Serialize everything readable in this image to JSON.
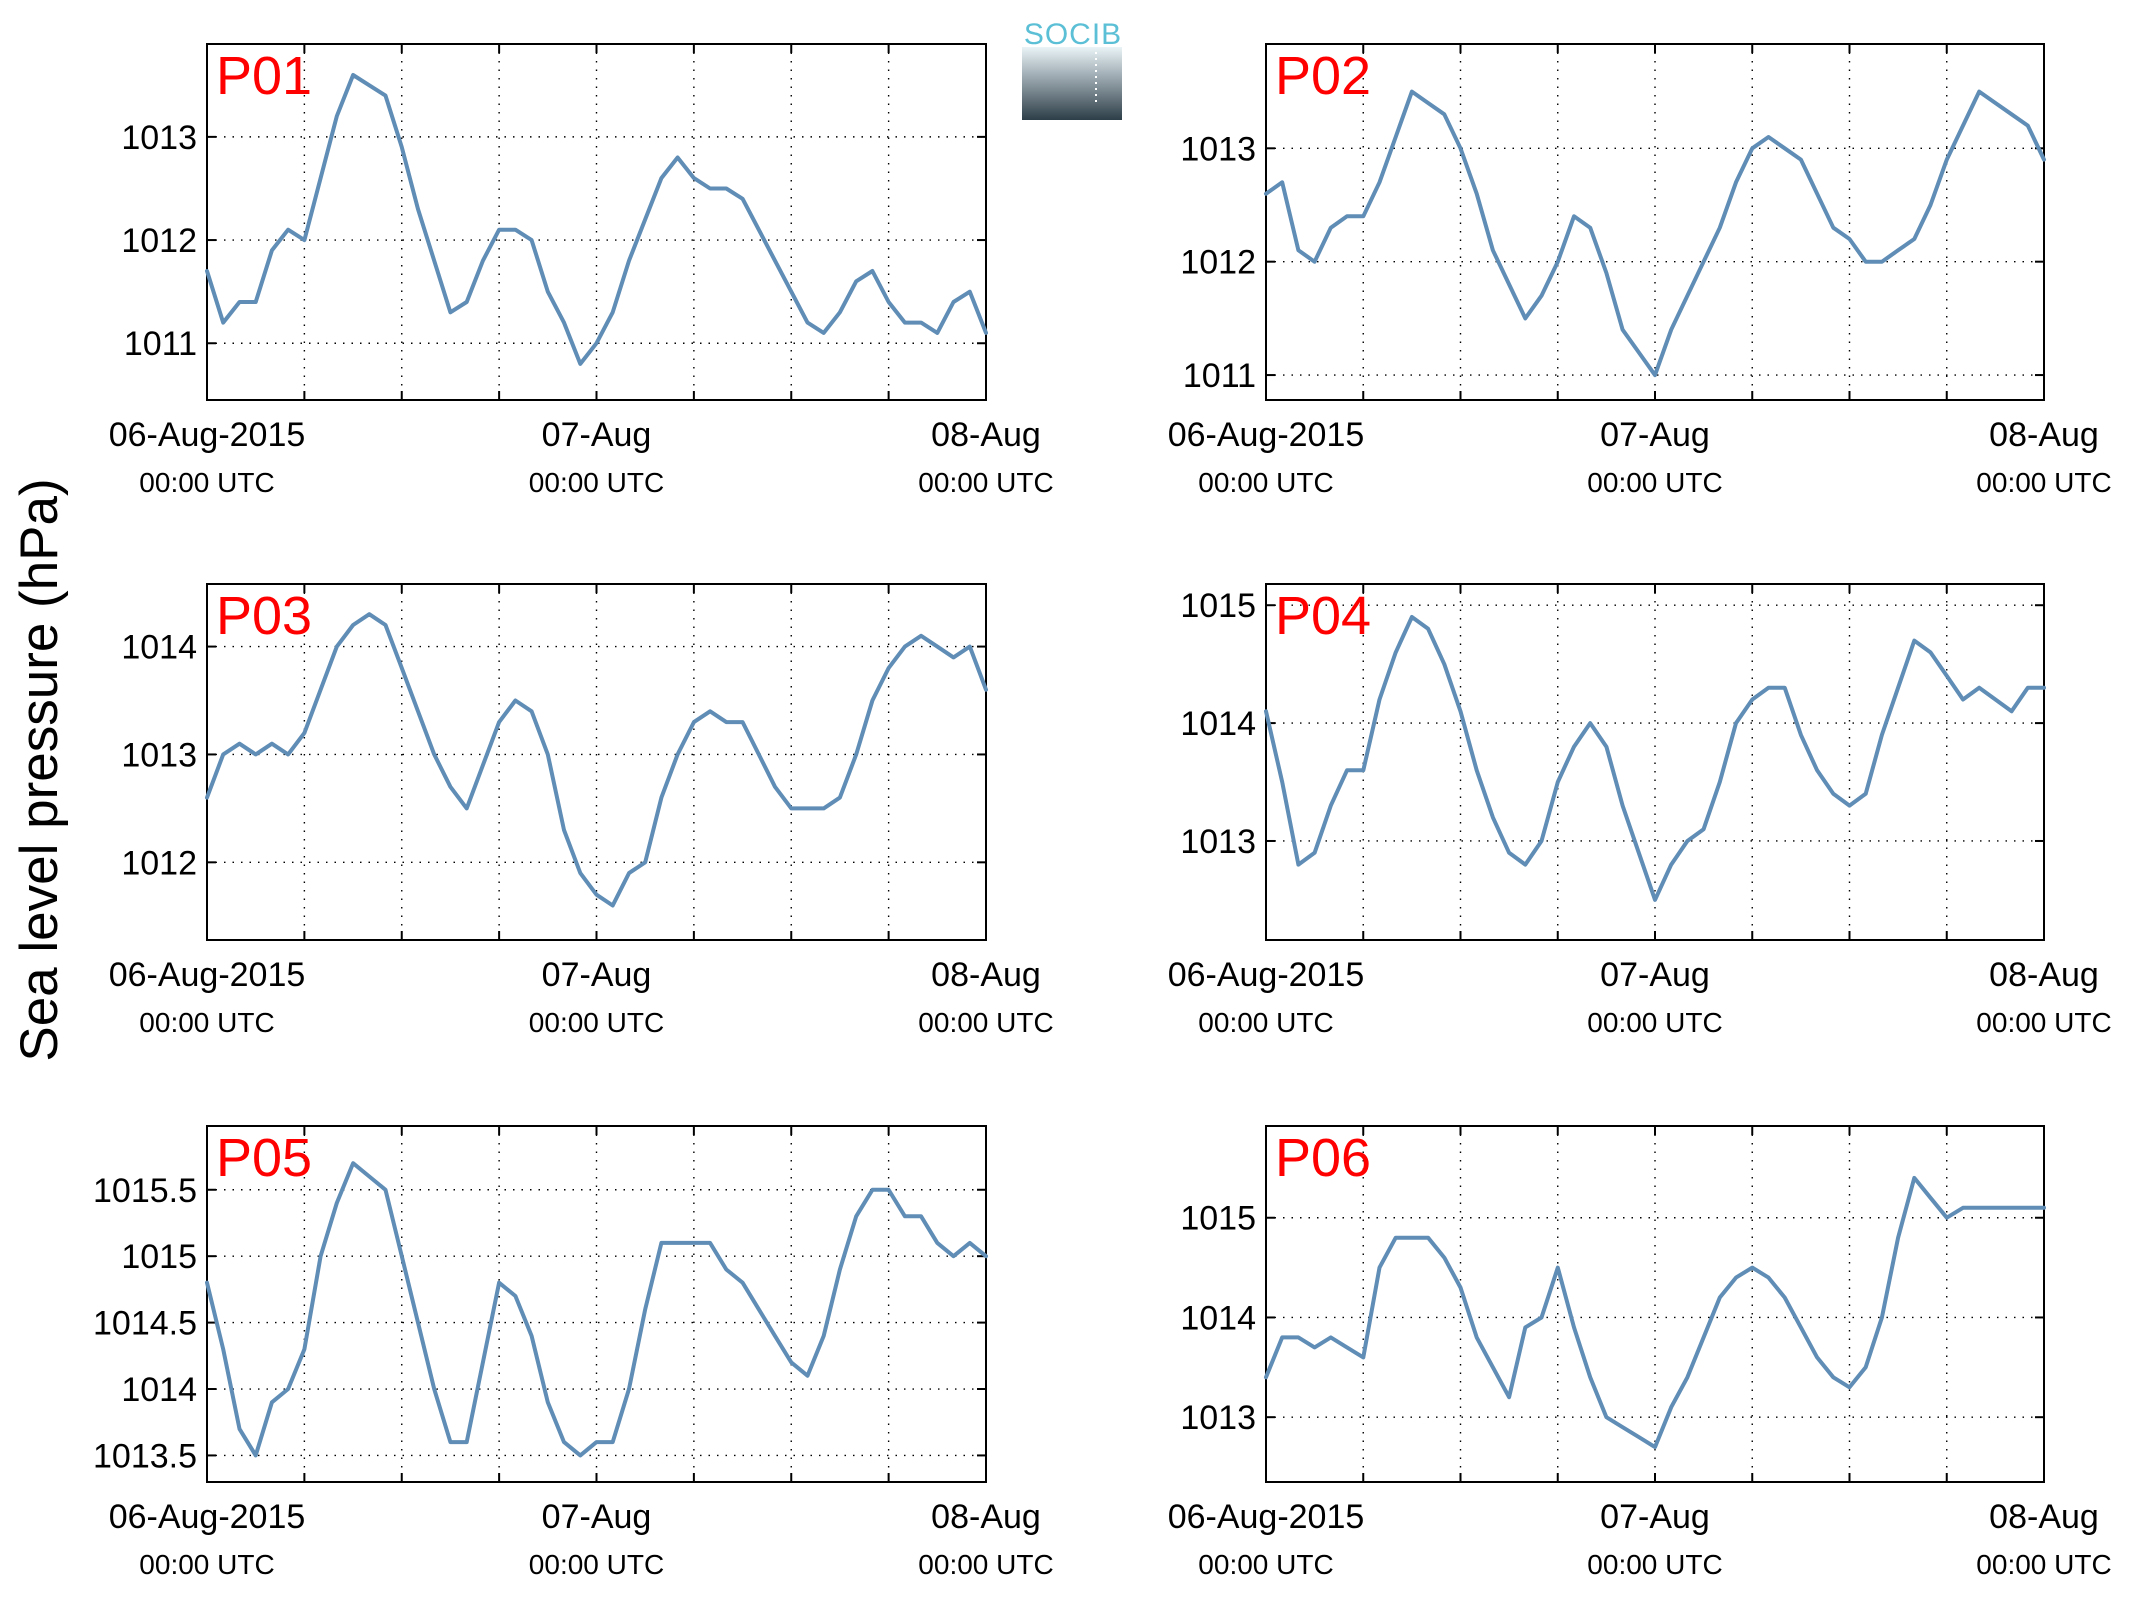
{
  "figure": {
    "ylabel": "Sea level pressure (hPa)",
    "logo_text": "SOCIB",
    "colors": {
      "line": "#5f8db5",
      "panel_label": "#ff0000",
      "grid": "#000000",
      "axes": "#000000",
      "logo_top": "#5bbfd5",
      "logo_bottom": "#2d3e48"
    },
    "x_tick_labels": [
      {
        "date": "06-Aug-2015",
        "time": "00:00 UTC"
      },
      {
        "date": "07-Aug",
        "time": "00:00 UTC"
      },
      {
        "date": "08-Aug",
        "time": "00:00 UTC"
      }
    ]
  },
  "chart_data": [
    {
      "type": "line",
      "title": "P01",
      "xlim": [
        0,
        48
      ],
      "ylim": [
        1010.45,
        1013.9
      ],
      "yticks": [
        1011,
        1012,
        1013
      ],
      "xtick_hours": [
        0,
        24,
        48
      ],
      "xgrid_hours": [
        6,
        12,
        18,
        24,
        30,
        36,
        42
      ],
      "series": [
        {
          "x": [
            0,
            1,
            2,
            3,
            4,
            5,
            6,
            7,
            8,
            9,
            10,
            11,
            12,
            13,
            14,
            15,
            16,
            17,
            18,
            19,
            20,
            21,
            22,
            23,
            24,
            25,
            26,
            27,
            28,
            29,
            30,
            31,
            32,
            33,
            34,
            35,
            36,
            37,
            38,
            39,
            40,
            41,
            42,
            43,
            44,
            45,
            46,
            47,
            48
          ],
          "values": [
            1011.7,
            1011.2,
            1011.4,
            1011.4,
            1011.9,
            1012.1,
            1012.0,
            1012.6,
            1013.2,
            1013.6,
            1013.5,
            1013.4,
            1012.9,
            1012.3,
            1011.8,
            1011.3,
            1011.4,
            1011.8,
            1012.1,
            1012.1,
            1012.0,
            1011.5,
            1011.2,
            1010.8,
            1011.0,
            1011.3,
            1011.8,
            1012.2,
            1012.6,
            1012.8,
            1012.6,
            1012.5,
            1012.5,
            1012.4,
            1012.1,
            1011.8,
            1011.5,
            1011.2,
            1011.1,
            1011.3,
            1011.6,
            1011.7,
            1011.4,
            1011.2,
            1011.2,
            1011.1,
            1011.4,
            1011.5,
            1011.1
          ]
        }
      ]
    },
    {
      "type": "line",
      "title": "P02",
      "xlim": [
        0,
        48
      ],
      "ylim": [
        1010.78,
        1013.92
      ],
      "yticks": [
        1011,
        1012,
        1013
      ],
      "xtick_hours": [
        0,
        24,
        48
      ],
      "xgrid_hours": [
        6,
        12,
        18,
        24,
        30,
        36,
        42
      ],
      "series": [
        {
          "x": [
            0,
            1,
            2,
            3,
            4,
            5,
            6,
            7,
            8,
            9,
            10,
            11,
            12,
            13,
            14,
            15,
            16,
            17,
            18,
            19,
            20,
            21,
            22,
            23,
            24,
            25,
            26,
            27,
            28,
            29,
            30,
            31,
            32,
            33,
            34,
            35,
            36,
            37,
            38,
            39,
            40,
            41,
            42,
            43,
            44,
            45,
            46,
            47,
            48
          ],
          "values": [
            1012.6,
            1012.7,
            1012.1,
            1012.0,
            1012.3,
            1012.4,
            1012.4,
            1012.7,
            1013.1,
            1013.5,
            1013.4,
            1013.3,
            1013.0,
            1012.6,
            1012.1,
            1011.8,
            1011.5,
            1011.7,
            1012.0,
            1012.4,
            1012.3,
            1011.9,
            1011.4,
            1011.2,
            1011.0,
            1011.4,
            1011.7,
            1012.0,
            1012.3,
            1012.7,
            1013.0,
            1013.1,
            1013.0,
            1012.9,
            1012.6,
            1012.3,
            1012.2,
            1012.0,
            1012.0,
            1012.1,
            1012.2,
            1012.5,
            1012.9,
            1013.2,
            1013.5,
            1013.4,
            1013.3,
            1013.2,
            1012.9
          ]
        }
      ]
    },
    {
      "type": "line",
      "title": "P03",
      "xlim": [
        0,
        48
      ],
      "ylim": [
        1011.28,
        1014.58
      ],
      "yticks": [
        1012,
        1013,
        1014
      ],
      "xtick_hours": [
        0,
        24,
        48
      ],
      "xgrid_hours": [
        6,
        12,
        18,
        24,
        30,
        36,
        42
      ],
      "series": [
        {
          "x": [
            0,
            1,
            2,
            3,
            4,
            5,
            6,
            7,
            8,
            9,
            10,
            11,
            12,
            13,
            14,
            15,
            16,
            17,
            18,
            19,
            20,
            21,
            22,
            23,
            24,
            25,
            26,
            27,
            28,
            29,
            30,
            31,
            32,
            33,
            34,
            35,
            36,
            37,
            38,
            39,
            40,
            41,
            42,
            43,
            44,
            45,
            46,
            47,
            48
          ],
          "values": [
            1012.6,
            1013.0,
            1013.1,
            1013.0,
            1013.1,
            1013.0,
            1013.2,
            1013.6,
            1014.0,
            1014.2,
            1014.3,
            1014.2,
            1013.8,
            1013.4,
            1013.0,
            1012.7,
            1012.5,
            1012.9,
            1013.3,
            1013.5,
            1013.4,
            1013.0,
            1012.3,
            1011.9,
            1011.7,
            1011.6,
            1011.9,
            1012.0,
            1012.6,
            1013.0,
            1013.3,
            1013.4,
            1013.3,
            1013.3,
            1013.0,
            1012.7,
            1012.5,
            1012.5,
            1012.5,
            1012.6,
            1013.0,
            1013.5,
            1013.8,
            1014.0,
            1014.1,
            1014.0,
            1013.9,
            1014.0,
            1013.6
          ]
        }
      ]
    },
    {
      "type": "line",
      "title": "P04",
      "xlim": [
        0,
        48
      ],
      "ylim": [
        1012.16,
        1015.18
      ],
      "yticks": [
        1013,
        1014,
        1015
      ],
      "xtick_hours": [
        0,
        24,
        48
      ],
      "xgrid_hours": [
        6,
        12,
        18,
        24,
        30,
        36,
        42
      ],
      "series": [
        {
          "x": [
            0,
            1,
            2,
            3,
            4,
            5,
            6,
            7,
            8,
            9,
            10,
            11,
            12,
            13,
            14,
            15,
            16,
            17,
            18,
            19,
            20,
            21,
            22,
            23,
            24,
            25,
            26,
            27,
            28,
            29,
            30,
            31,
            32,
            33,
            34,
            35,
            36,
            37,
            38,
            39,
            40,
            41,
            42,
            43,
            44,
            45,
            46,
            47,
            48
          ],
          "values": [
            1014.1,
            1013.5,
            1012.8,
            1012.9,
            1013.3,
            1013.6,
            1013.6,
            1014.2,
            1014.6,
            1014.9,
            1014.8,
            1014.5,
            1014.1,
            1013.6,
            1013.2,
            1012.9,
            1012.8,
            1013.0,
            1013.5,
            1013.8,
            1014.0,
            1013.8,
            1013.3,
            1012.9,
            1012.5,
            1012.8,
            1013.0,
            1013.1,
            1013.5,
            1014.0,
            1014.2,
            1014.3,
            1014.3,
            1013.9,
            1013.6,
            1013.4,
            1013.3,
            1013.4,
            1013.9,
            1014.3,
            1014.7,
            1014.6,
            1014.4,
            1014.2,
            1014.3,
            1014.2,
            1014.1,
            1014.3,
            1014.3
          ]
        }
      ]
    },
    {
      "type": "line",
      "title": "P05",
      "xlim": [
        0,
        48
      ],
      "ylim": [
        1013.3,
        1015.98
      ],
      "yticks": [
        1013.5,
        1014,
        1014.5,
        1015,
        1015.5
      ],
      "xtick_hours": [
        0,
        24,
        48
      ],
      "xgrid_hours": [
        6,
        12,
        18,
        24,
        30,
        36,
        42
      ],
      "series": [
        {
          "x": [
            0,
            1,
            2,
            3,
            4,
            5,
            6,
            7,
            8,
            9,
            10,
            11,
            12,
            13,
            14,
            15,
            16,
            17,
            18,
            19,
            20,
            21,
            22,
            23,
            24,
            25,
            26,
            27,
            28,
            29,
            30,
            31,
            32,
            33,
            34,
            35,
            36,
            37,
            38,
            39,
            40,
            41,
            42,
            43,
            44,
            45,
            46,
            47,
            48
          ],
          "values": [
            1014.8,
            1014.3,
            1013.7,
            1013.5,
            1013.9,
            1014.0,
            1014.3,
            1015.0,
            1015.4,
            1015.7,
            1015.6,
            1015.5,
            1015.0,
            1014.5,
            1014.0,
            1013.6,
            1013.6,
            1014.2,
            1014.8,
            1014.7,
            1014.4,
            1013.9,
            1013.6,
            1013.5,
            1013.6,
            1013.6,
            1014.0,
            1014.6,
            1015.1,
            1015.1,
            1015.1,
            1015.1,
            1014.9,
            1014.8,
            1014.6,
            1014.4,
            1014.2,
            1014.1,
            1014.4,
            1014.9,
            1015.3,
            1015.5,
            1015.5,
            1015.3,
            1015.3,
            1015.1,
            1015.0,
            1015.1,
            1015.0
          ]
        }
      ]
    },
    {
      "type": "line",
      "title": "P06",
      "xlim": [
        0,
        48
      ],
      "ylim": [
        1012.35,
        1015.92
      ],
      "yticks": [
        1013,
        1014,
        1015
      ],
      "xtick_hours": [
        0,
        24,
        48
      ],
      "xgrid_hours": [
        6,
        12,
        18,
        24,
        30,
        36,
        42
      ],
      "series": [
        {
          "x": [
            0,
            1,
            2,
            3,
            4,
            5,
            6,
            7,
            8,
            9,
            10,
            11,
            12,
            13,
            14,
            15,
            16,
            17,
            18,
            19,
            20,
            21,
            22,
            23,
            24,
            25,
            26,
            27,
            28,
            29,
            30,
            31,
            32,
            33,
            34,
            35,
            36,
            37,
            38,
            39,
            40,
            41,
            42,
            43,
            44,
            45,
            46,
            47,
            48
          ],
          "values": [
            1013.4,
            1013.8,
            1013.8,
            1013.7,
            1013.8,
            1013.7,
            1013.6,
            1014.5,
            1014.8,
            1014.8,
            1014.8,
            1014.6,
            1014.3,
            1013.8,
            1013.5,
            1013.2,
            1013.9,
            1014.0,
            1014.5,
            1013.9,
            1013.4,
            1013.0,
            1012.9,
            1012.8,
            1012.7,
            1013.1,
            1013.4,
            1013.8,
            1014.2,
            1014.4,
            1014.5,
            1014.4,
            1014.2,
            1013.9,
            1013.6,
            1013.4,
            1013.3,
            1013.5,
            1014.0,
            1014.8,
            1015.4,
            1015.2,
            1015.0,
            1015.1,
            1015.1,
            1015.1,
            1015.1,
            1015.1,
            1015.1
          ]
        }
      ]
    }
  ]
}
